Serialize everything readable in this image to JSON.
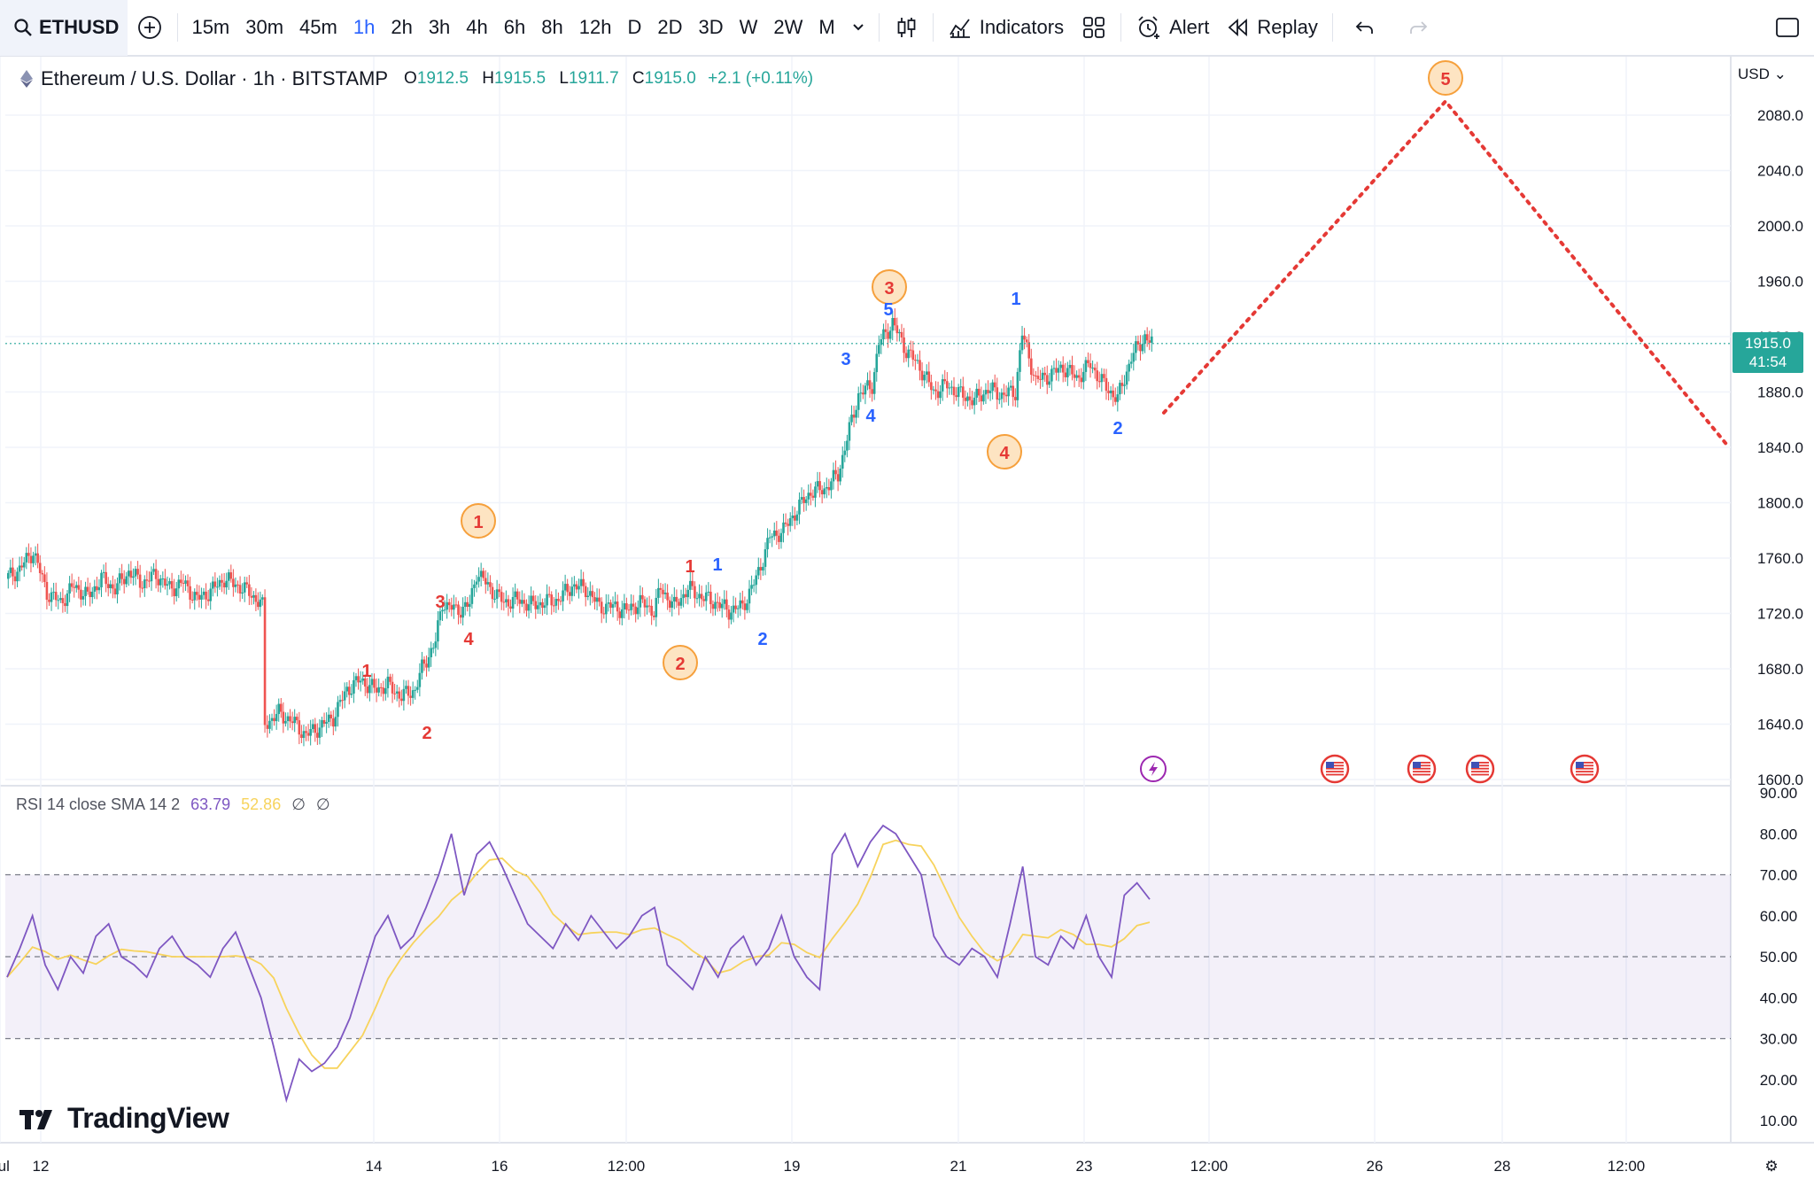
{
  "toolbar": {
    "symbol": "ETHUSD",
    "intervals": [
      "15m",
      "30m",
      "45m",
      "1h",
      "2h",
      "3h",
      "4h",
      "6h",
      "8h",
      "12h",
      "D",
      "2D",
      "3D",
      "W",
      "2W",
      "M"
    ],
    "active_interval": "1h",
    "indicators_label": "Indicators",
    "alert_label": "Alert",
    "replay_label": "Replay"
  },
  "legend": {
    "title": "Ethereum / U.S. Dollar · 1h · BITSTAMP",
    "open_label": "O",
    "open": "1912.5",
    "high_label": "H",
    "high": "1915.5",
    "low_label": "L",
    "low": "1911.7",
    "close_label": "C",
    "close": "1915.0",
    "change": "+2.1 (+0.11%)"
  },
  "currency": "USD",
  "price_tag": {
    "price": "1915.0",
    "countdown": "41:54"
  },
  "rsi_legend": {
    "title": "RSI 14 close SMA 14 2",
    "rsi": "63.79",
    "sma": "52.86",
    "extra1": "∅",
    "extra2": "∅"
  },
  "brand": "TradingView",
  "colors": {
    "up": "#26a69a",
    "down": "#ef5350",
    "rsi_line": "#7e57c2",
    "rsi_sma": "#f7d35c",
    "accent": "#2962ff",
    "wave_red": "#e53935",
    "wave_blue": "#2962ff",
    "wave_circle_fill": "#fde4c2",
    "wave_circle_stroke": "#f6a03c"
  },
  "chart_data": {
    "type": "candlestick",
    "symbol": "ETHUSD",
    "interval": "1h",
    "y_axis_ticks": [
      "1600.0",
      "1640.0",
      "1680.0",
      "1720.0",
      "1760.0",
      "1800.0",
      "1840.0",
      "1880.0",
      "1920.0",
      "1960.0",
      "2000.0",
      "2040.0",
      "2080.0"
    ],
    "ylim": [
      1600,
      2100
    ],
    "x_axis_ticks": [
      "12",
      "14",
      "16",
      "12:00",
      "19",
      "21",
      "23",
      "12:00",
      "26",
      "28",
      "12:00",
      "Jul"
    ],
    "price_path": [
      [
        0,
        1745
      ],
      [
        10,
        1752
      ],
      [
        20,
        1765
      ],
      [
        30,
        1735
      ],
      [
        40,
        1728
      ],
      [
        50,
        1740
      ],
      [
        60,
        1732
      ],
      [
        70,
        1745
      ],
      [
        80,
        1738
      ],
      [
        90,
        1750
      ],
      [
        100,
        1742
      ],
      [
        110,
        1748
      ],
      [
        120,
        1738
      ],
      [
        130,
        1742
      ],
      [
        140,
        1730
      ],
      [
        150,
        1736
      ],
      [
        160,
        1745
      ],
      [
        170,
        1740
      ],
      [
        180,
        1734
      ],
      [
        188,
        1725
      ],
      [
        190,
        1640
      ],
      [
        200,
        1648
      ],
      [
        210,
        1642
      ],
      [
        220,
        1632
      ],
      [
        230,
        1638
      ],
      [
        240,
        1645
      ],
      [
        250,
        1665
      ],
      [
        260,
        1672
      ],
      [
        270,
        1665
      ],
      [
        280,
        1668
      ],
      [
        290,
        1660
      ],
      [
        300,
        1665
      ],
      [
        305,
        1680
      ],
      [
        315,
        1700
      ],
      [
        320,
        1728
      ],
      [
        330,
        1722
      ],
      [
        340,
        1726
      ],
      [
        345,
        1750
      ],
      [
        355,
        1738
      ],
      [
        365,
        1728
      ],
      [
        375,
        1730
      ],
      [
        385,
        1726
      ],
      [
        395,
        1728
      ],
      [
        405,
        1730
      ],
      [
        415,
        1740
      ],
      [
        425,
        1738
      ],
      [
        435,
        1725
      ],
      [
        445,
        1725
      ],
      [
        455,
        1722
      ],
      [
        465,
        1728
      ],
      [
        475,
        1722
      ],
      [
        480,
        1738
      ],
      [
        490,
        1725
      ],
      [
        500,
        1738
      ],
      [
        510,
        1732
      ],
      [
        520,
        1728
      ],
      [
        530,
        1722
      ],
      [
        540,
        1725
      ],
      [
        550,
        1745
      ],
      [
        560,
        1775
      ],
      [
        570,
        1780
      ],
      [
        580,
        1795
      ],
      [
        590,
        1808
      ],
      [
        600,
        1810
      ],
      [
        610,
        1820
      ],
      [
        615,
        1840
      ],
      [
        625,
        1878
      ],
      [
        635,
        1885
      ],
      [
        640,
        1915
      ],
      [
        650,
        1930
      ],
      [
        660,
        1910
      ],
      [
        670,
        1898
      ],
      [
        680,
        1880
      ],
      [
        690,
        1885
      ],
      [
        700,
        1878
      ],
      [
        710,
        1874
      ],
      [
        720,
        1882
      ],
      [
        730,
        1878
      ],
      [
        740,
        1880
      ],
      [
        745,
        1922
      ],
      [
        755,
        1888
      ],
      [
        765,
        1892
      ],
      [
        775,
        1898
      ],
      [
        785,
        1890
      ],
      [
        795,
        1900
      ],
      [
        805,
        1885
      ],
      [
        815,
        1875
      ],
      [
        825,
        1905
      ],
      [
        835,
        1920
      ],
      [
        840,
        1915
      ]
    ],
    "elliott_waves": [
      {
        "label": "1",
        "value": 1770,
        "style": "circle"
      },
      {
        "label": "2",
        "value": 1700,
        "style": "circle"
      },
      {
        "label": "3",
        "value": 1932,
        "style": "circle"
      },
      {
        "label": "4",
        "value": 1863,
        "style": "circle"
      },
      {
        "label": "5",
        "value": 2090,
        "style": "circle"
      }
    ],
    "sub_waves_red": [
      "1",
      "2",
      "3",
      "4",
      "1"
    ],
    "sub_waves_blue": [
      "1",
      "2",
      "3",
      "4",
      "5",
      "1",
      "2"
    ],
    "projection": [
      {
        "value": 1865
      },
      {
        "value": 2090
      },
      {
        "value": 1840
      }
    ],
    "last_price": 1915.0,
    "rsi": {
      "period": 14,
      "value": 63.79,
      "sma": 52.86,
      "levels": [
        30,
        50,
        70
      ],
      "y_ticks": [
        "10.00",
        "20.00",
        "30.00",
        "40.00",
        "50.00",
        "60.00",
        "70.00",
        "80.00",
        "90.00"
      ],
      "series": [
        45,
        52,
        60,
        48,
        42,
        50,
        46,
        55,
        58,
        50,
        48,
        45,
        52,
        55,
        50,
        48,
        45,
        52,
        56,
        48,
        40,
        28,
        15,
        25,
        22,
        24,
        28,
        35,
        45,
        55,
        60,
        52,
        55,
        62,
        70,
        80,
        65,
        75,
        78,
        72,
        65,
        58,
        55,
        52,
        58,
        54,
        60,
        56,
        52,
        55,
        60,
        62,
        48,
        45,
        42,
        50,
        45,
        52,
        55,
        48,
        52,
        60,
        50,
        45,
        42,
        75,
        80,
        72,
        78,
        82,
        80,
        75,
        70,
        55,
        50,
        48,
        52,
        50,
        45,
        58,
        72,
        50,
        48,
        55,
        52,
        60,
        50,
        45,
        65,
        68,
        64
      ]
    },
    "events": [
      "lightning",
      "us-flag",
      "us-flag",
      "us-flag",
      "us-flag"
    ]
  }
}
